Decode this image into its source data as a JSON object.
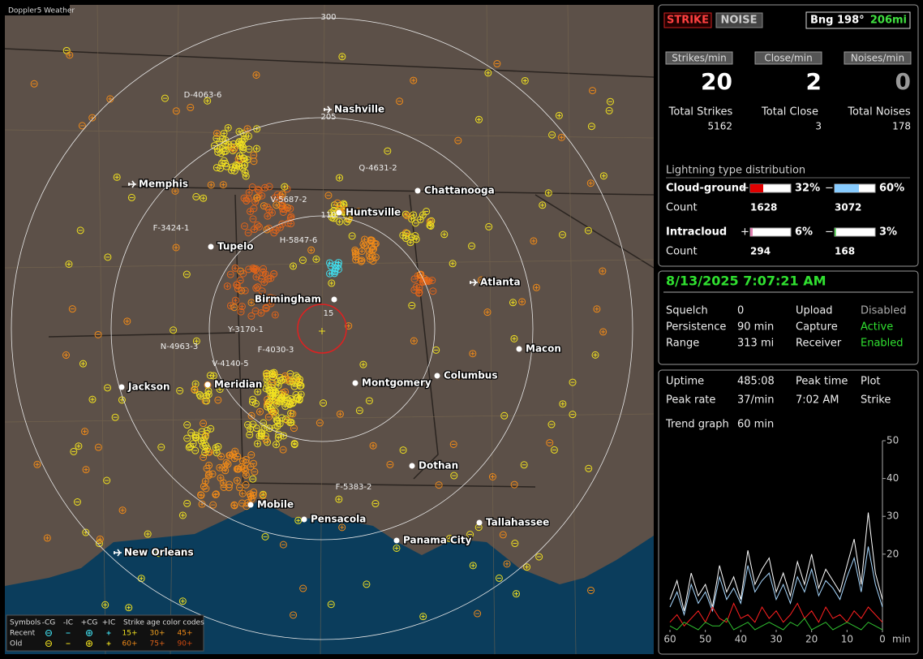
{
  "map": {
    "title": "Doppler5 Weather",
    "ring_labels": [
      "300",
      "205",
      "110",
      "15"
    ],
    "cities": [
      "Nashville",
      "Memphis",
      "Chattanooga",
      "Huntsville",
      "Tupelo",
      "Birmingham",
      "Atlanta",
      "Macon",
      "Jackson",
      "Meridian",
      "Montgomery",
      "Columbus",
      "Dothan",
      "Mobile",
      "Pensacola",
      "Tallahassee",
      "Panama City",
      "New Orleans"
    ],
    "storm_labels": [
      "D-4063-6",
      "Q-4631-2",
      "V-5687-2",
      "F-3424-1",
      "H-5847-6",
      "Y-3170-1",
      "N-4963-3",
      "F-4030-3",
      "V-4140-5",
      "F-5383-2"
    ],
    "legend": {
      "symbols": "Symbols",
      "types": [
        "-CG",
        "-IC",
        "+CG",
        "+IC"
      ],
      "rows": [
        "Recent",
        "Old"
      ],
      "age_title": "Strike age color codes",
      "ages": [
        [
          "15+",
          "30+",
          "45+"
        ],
        [
          "60+",
          "75+",
          "90+"
        ]
      ]
    }
  },
  "strike_panel": {
    "modes": [
      "STRIKE",
      "NOISE"
    ],
    "bearing": "Bng 198°",
    "distance": "206mi",
    "rates": [
      {
        "label": "Strikes/min",
        "value": "20"
      },
      {
        "label": "Close/min",
        "value": "2"
      },
      {
        "label": "Noises/min",
        "value": "0"
      }
    ],
    "totals": [
      {
        "label": "Total Strikes",
        "value": "5162"
      },
      {
        "label": "Total Close",
        "value": "3"
      },
      {
        "label": "Total Noises",
        "value": "178"
      }
    ],
    "distribution_title": "Lightning type distribution",
    "count_label": "Count",
    "types": [
      {
        "label": "Cloud-ground",
        "plus": {
          "sign": "+",
          "value": 32,
          "value_label": "32%",
          "count": "1628"
        },
        "minus": {
          "sign": "−",
          "value": 60,
          "value_label": "60%",
          "count": "3072"
        }
      },
      {
        "label": "Intracloud",
        "plus": {
          "sign": "+",
          "value": 6,
          "value_label": "6%",
          "count": "294"
        },
        "minus": {
          "sign": "−",
          "value": 3,
          "value_label": "3%",
          "count": "168"
        }
      }
    ]
  },
  "status_panel": {
    "datetime": "8/13/2025 7:07:21 AM",
    "rows": [
      [
        "Squelch",
        "0",
        "Upload",
        "Disabled"
      ],
      [
        "Persistence",
        "90 min",
        "Capture",
        "Active"
      ],
      [
        "Range",
        "313 mi",
        "Receiver",
        "Enabled"
      ]
    ]
  },
  "trend_panel": {
    "rows": [
      [
        "Uptime",
        "485:08",
        "Peak time",
        "Plot"
      ],
      [
        "Peak rate",
        "37/min",
        "7:02 AM",
        "Strike"
      ]
    ],
    "trend_label": "Trend graph",
    "trend_value": "60 min"
  },
  "chart_data": {
    "type": "line",
    "x_label": "min",
    "x": [
      60,
      58,
      56,
      54,
      52,
      50,
      48,
      46,
      44,
      42,
      40,
      38,
      36,
      34,
      32,
      30,
      28,
      26,
      24,
      22,
      20,
      18,
      16,
      14,
      12,
      10,
      8,
      6,
      4,
      2,
      0
    ],
    "xlim": [
      60,
      0
    ],
    "xticks": [
      60,
      50,
      40,
      30,
      20,
      10,
      0
    ],
    "ylim": [
      0,
      50
    ],
    "yticks": [
      20,
      30,
      40,
      50
    ],
    "series": [
      {
        "color": "#ffffff",
        "values": [
          8,
          13,
          5,
          15,
          9,
          12,
          6,
          17,
          10,
          14,
          8,
          21,
          12,
          16,
          19,
          10,
          15,
          9,
          18,
          12,
          20,
          11,
          16,
          13,
          10,
          17,
          24,
          12,
          31,
          15,
          8
        ]
      },
      {
        "color": "#a8d8ff",
        "values": [
          6,
          10,
          4,
          12,
          7,
          10,
          5,
          14,
          8,
          11,
          7,
          17,
          10,
          13,
          15,
          8,
          12,
          7,
          14,
          10,
          16,
          9,
          13,
          11,
          8,
          14,
          19,
          10,
          22,
          12,
          6
        ]
      },
      {
        "color": "#ff2020",
        "values": [
          2,
          4,
          1,
          3,
          5,
          2,
          6,
          3,
          2,
          7,
          3,
          4,
          2,
          6,
          3,
          5,
          2,
          4,
          7,
          3,
          5,
          2,
          6,
          3,
          4,
          2,
          5,
          3,
          6,
          4,
          2
        ]
      },
      {
        "color": "#30c030",
        "values": [
          1,
          0,
          2,
          1,
          0,
          2,
          1,
          1,
          3,
          0,
          1,
          2,
          0,
          1,
          2,
          1,
          0,
          2,
          1,
          3,
          0,
          1,
          2,
          0,
          1,
          2,
          1,
          0,
          2,
          1,
          0
        ]
      }
    ]
  }
}
